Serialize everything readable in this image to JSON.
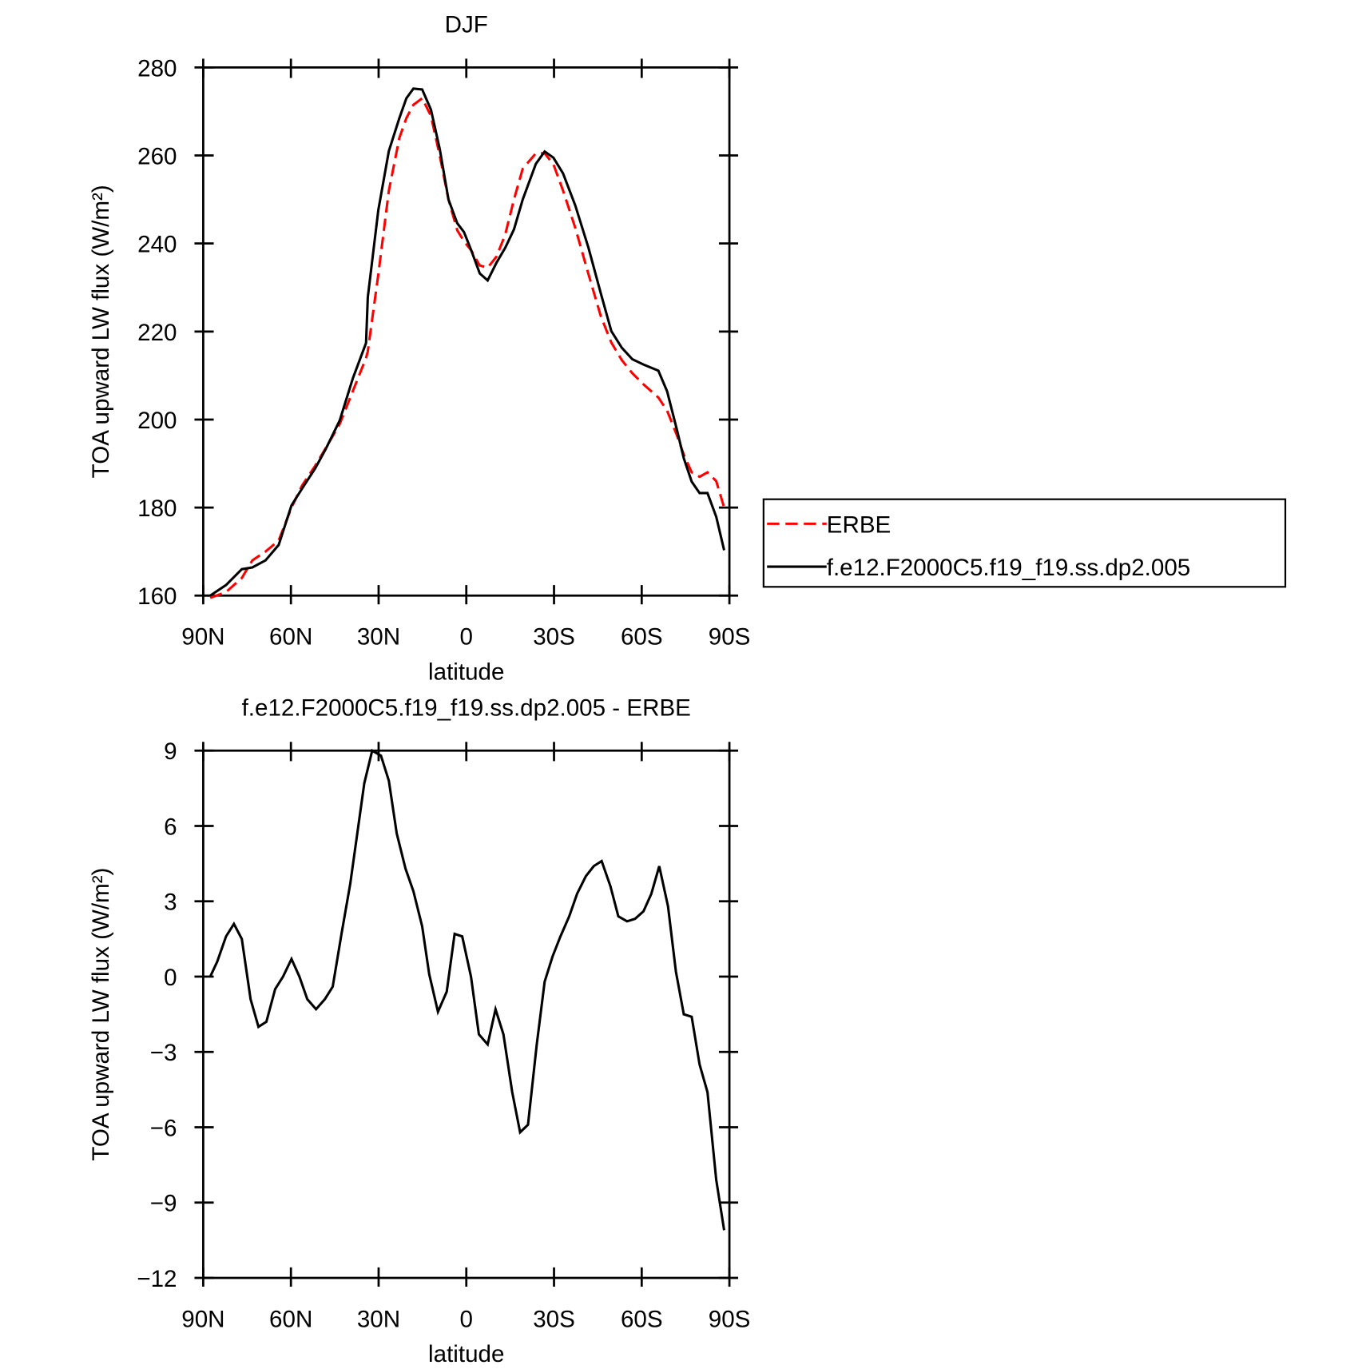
{
  "chart_data": [
    {
      "type": "line",
      "title": "DJF",
      "xlabel": "latitude",
      "ylabel": "TOA upward LW flux (W/m²)",
      "x": [
        87.6,
        82.2,
        76.8,
        73.2,
        68.7,
        64.2,
        59.8,
        56.2,
        51.7,
        48.1,
        43.3,
        38.8,
        34.3,
        33.7,
        30.1,
        26.5,
        22.9,
        20.5,
        18.1,
        15.1,
        12.1,
        9.1,
        6.1,
        3.1,
        0.8,
        -1.6,
        -4.6,
        -7.3,
        -10.3,
        -13.3,
        -16.3,
        -19.3,
        -23.8,
        -26.8,
        -29.8,
        -33.1,
        -37.3,
        -41.8,
        -46,
        -49.6,
        -53.2,
        -56.8,
        -60.6,
        -65.7,
        -68.7,
        -72,
        -74.4,
        -77.1,
        -79.8,
        -82.5,
        -85.5,
        -88.2
      ],
      "series": [
        {
          "name": "ERBE",
          "color": "#ff0000",
          "line_style": "dashed",
          "values": [
            159.5,
            160.8,
            164,
            168,
            170,
            172.5,
            180,
            185,
            189.5,
            193.5,
            199,
            206.5,
            214,
            215.5,
            233,
            252,
            264,
            268.5,
            271.5,
            273,
            269,
            260,
            250,
            243,
            240.5,
            238.5,
            235,
            234.5,
            237,
            242,
            250,
            257,
            260.5,
            260.5,
            258,
            252,
            243.5,
            233,
            223.5,
            217.5,
            213.5,
            210.5,
            208,
            205,
            202,
            196.5,
            192,
            188,
            187,
            188,
            186,
            180
          ]
        },
        {
          "name": "f.e12.F2000C5.f19_f19.ss.dp2.005",
          "color": "#000000",
          "line_style": "solid",
          "values": [
            160,
            162.4,
            166,
            166.4,
            168,
            171.5,
            180.5,
            184.3,
            188.9,
            193.3,
            199.8,
            209.4,
            217.4,
            227.8,
            247.6,
            261,
            268.5,
            273,
            275.2,
            275,
            270.4,
            261.5,
            250,
            244.6,
            242.6,
            238.6,
            233.2,
            231.6,
            235.6,
            239,
            243.2,
            250,
            258.1,
            260.9,
            259.5,
            255.9,
            248.6,
            239,
            228.7,
            220.1,
            216.3,
            213.7,
            212.5,
            211.1,
            206.4,
            197.8,
            191.2,
            185.9,
            183.3,
            183.3,
            177.9,
            170.3
          ]
        }
      ],
      "xlim": [
        90,
        -90
      ],
      "xticks": [
        {
          "value": 90,
          "label": "90N"
        },
        {
          "value": 60,
          "label": "60N"
        },
        {
          "value": 30,
          "label": "30N"
        },
        0,
        {
          "value": -30,
          "label": "30S"
        },
        {
          "value": -60,
          "label": "60S"
        },
        {
          "value": -90,
          "label": "90S"
        }
      ],
      "ylim": [
        160,
        280
      ],
      "yticks": [
        160,
        180,
        200,
        220,
        240,
        260,
        280
      ],
      "grid": false,
      "legend": "right"
    },
    {
      "type": "line",
      "title": "f.e12.F2000C5.f19_f19.ss.dp2.005 - ERBE",
      "xlabel": "latitude",
      "ylabel": "TOA upward LW flux (W/m²)",
      "x": [
        87.6,
        85.2,
        82.2,
        79.5,
        76.8,
        73.8,
        71.1,
        68.4,
        65.4,
        62.7,
        59.8,
        57.1,
        54.4,
        51.4,
        48.4,
        45.7,
        42.7,
        39.7,
        37.3,
        34.9,
        32.2,
        29.2,
        26.5,
        23.8,
        20.8,
        18.1,
        15.1,
        12.7,
        9.7,
        6.7,
        4.0,
        1.4,
        -1.6,
        -4.3,
        -7.3,
        -10.0,
        -12.7,
        -15.7,
        -18.4,
        -21.1,
        -24.1,
        -26.8,
        -29.5,
        -32.2,
        -35.2,
        -37.9,
        -40.9,
        -43.6,
        -46.3,
        -49.3,
        -52.0,
        -55.0,
        -57.7,
        -60.6,
        -63.3,
        -66.0,
        -69.0,
        -71.7,
        -74.4,
        -77.1,
        -79.8,
        -82.5,
        -85.5,
        -88.2
      ],
      "values": [
        0,
        0.6,
        1.6,
        2.1,
        1.5,
        -0.9,
        -2.0,
        -1.8,
        -0.5,
        0,
        0.7,
        0,
        -0.9,
        -1.3,
        -0.9,
        -0.4,
        1.7,
        3.7,
        5.7,
        7.7,
        9.0,
        8.8,
        7.8,
        5.7,
        4.3,
        3.4,
        2.0,
        0.1,
        -1.4,
        -0.6,
        1.7,
        1.6,
        0,
        -2.3,
        -2.7,
        -1.3,
        -2.3,
        -4.6,
        -6.2,
        -5.9,
        -2.7,
        -0.2,
        0.8,
        1.6,
        2.4,
        3.3,
        4.0,
        4.4,
        4.6,
        3.6,
        2.4,
        2.2,
        2.3,
        2.6,
        3.3,
        4.4,
        2.8,
        0.2,
        -1.5,
        -1.6,
        -3.5,
        -4.6,
        -8.1,
        -10.1
      ],
      "color": "#000000",
      "xlim": [
        90,
        -90
      ],
      "xticks": [
        {
          "value": 90,
          "label": "90N"
        },
        {
          "value": 60,
          "label": "60N"
        },
        {
          "value": 30,
          "label": "30N"
        },
        0,
        {
          "value": -30,
          "label": "30S"
        },
        {
          "value": -60,
          "label": "60S"
        },
        {
          "value": -90,
          "label": "90S"
        }
      ],
      "ylim": [
        -12,
        9
      ],
      "yticks": [
        {
          "value": -12,
          "label": "−12"
        },
        {
          "value": -9,
          "label": "−9"
        },
        {
          "value": -6,
          "label": "−6"
        },
        {
          "value": -3,
          "label": "−3"
        },
        0,
        3,
        6,
        9
      ],
      "grid": false
    }
  ]
}
